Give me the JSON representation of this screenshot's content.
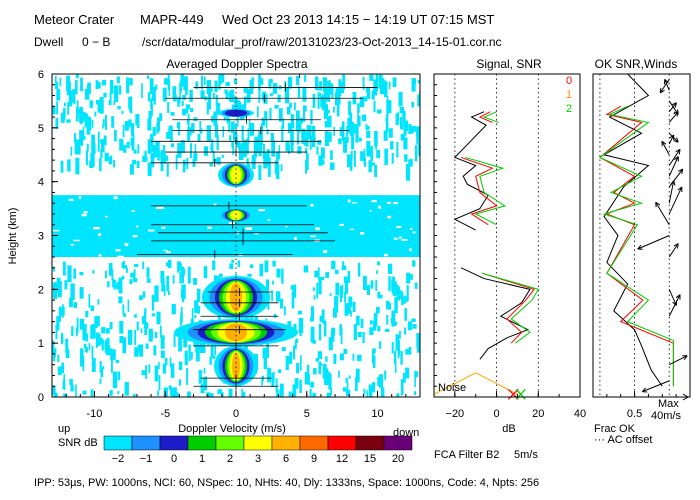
{
  "header": {
    "site": "Meteor Crater",
    "instrument": "MAPR-449",
    "time": "Wed Oct 23 2013 14:15 − 14:19 UT 07:15 MST",
    "dwell_label": "Dwell",
    "dwell_value": "0 − B",
    "file_path": "/scr/data/modular_prof/raw/20131023/23-Oct-2013_14-15-01.cor.nc"
  },
  "footer": {
    "params": "IPP: 53µs, PW: 1000ns, NCI: 60, NSpec: 10, NHts: 40, Dly: 1333ns, Space: 1000ns, Code: 4, Npts: 256",
    "fca": "FCA Filter B2",
    "fca_speed": "5m/s"
  },
  "colorbar": {
    "title_left": "up",
    "title_label": "SNR dB",
    "ticks": [
      "−2",
      "−1",
      "0",
      "1",
      "2",
      "3",
      "6",
      "9",
      "12",
      "15",
      "20"
    ],
    "colors": [
      "#00e5ff",
      "#1e90ff",
      "#1c1cc8",
      "#00cc00",
      "#66ff00",
      "#ffff00",
      "#ffb000",
      "#ff6a00",
      "#ff0000",
      "#7a0010",
      "#6a0078"
    ]
  },
  "chart_data": [
    {
      "type": "heatmap",
      "title": "Averaged Doppler Spectra",
      "xlabel": "Doppler Velocity (m/s)",
      "ylabel": "Height (km)",
      "xlim": [
        -13,
        13
      ],
      "ylim": [
        0,
        6
      ],
      "xticks": [
        -10,
        -5,
        0,
        5,
        10
      ],
      "yticks": [
        0,
        1,
        2,
        3,
        4,
        5,
        6
      ],
      "right_label": "down",
      "noise_layers_km": [
        [
          0.05,
          2.55
        ],
        [
          2.6,
          3.75
        ],
        [
          4.3,
          6.0
        ]
      ],
      "peak_velocity_ms": 0,
      "signal_layers": [
        {
          "h": [
            0.2,
            0.95
          ],
          "snr_db_max": 6
        },
        {
          "h": [
            0.95,
            1.45
          ],
          "snr_db_max": 6
        },
        {
          "h": [
            1.45,
            2.25
          ],
          "snr_db_max": 6
        },
        {
          "h": [
            3.25,
            3.5
          ],
          "snr_db_max": 3
        },
        {
          "h": [
            3.9,
            4.35
          ],
          "snr_db_max": 3
        },
        {
          "h": [
            5.2,
            5.35
          ],
          "snr_db_max": 0
        }
      ],
      "spectral_width_bars": [
        {
          "h": 0.2,
          "lo": -3,
          "hi": 3
        },
        {
          "h": 0.35,
          "lo": -2.5,
          "hi": 2.5
        },
        {
          "h": 0.95,
          "lo": -3,
          "hi": 3
        },
        {
          "h": 1.25,
          "lo": -3,
          "hi": 3.5
        },
        {
          "h": 1.5,
          "lo": -2.5,
          "hi": 3
        },
        {
          "h": 1.75,
          "lo": -2.5,
          "hi": 3
        },
        {
          "h": 1.95,
          "lo": -2,
          "hi": 2.5
        },
        {
          "h": 2.65,
          "lo": -7,
          "hi": 4
        },
        {
          "h": 2.9,
          "lo": -6,
          "hi": 7
        },
        {
          "h": 3.05,
          "lo": -5.5,
          "hi": 6.5
        },
        {
          "h": 3.2,
          "lo": -6,
          "hi": 5.5
        },
        {
          "h": 3.55,
          "lo": -6,
          "hi": 5
        },
        {
          "h": 4.35,
          "lo": -6,
          "hi": 3
        },
        {
          "h": 4.55,
          "lo": -5,
          "hi": 5
        },
        {
          "h": 4.75,
          "lo": -6,
          "hi": 6
        },
        {
          "h": 4.95,
          "lo": -4.5,
          "hi": 8
        },
        {
          "h": 5.15,
          "lo": -4.5,
          "hi": 6
        },
        {
          "h": 5.55,
          "lo": -5,
          "hi": 9
        },
        {
          "h": 5.75,
          "lo": -3,
          "hi": 10
        },
        {
          "h": 6.0,
          "lo": -3,
          "hi": 12
        }
      ]
    },
    {
      "type": "line",
      "title": "Signal, SNR",
      "xlabel": "dB",
      "xlim": [
        -30,
        40
      ],
      "xticks": [
        -20,
        0,
        20,
        40
      ],
      "noise_label": "Noise",
      "dashed_gridlines_db": [
        -20,
        0,
        20
      ],
      "series": [
        {
          "name": "signal",
          "color": "#000000",
          "points": [
            [
              -8,
              0.7
            ],
            [
              -4,
              0.9
            ],
            [
              5,
              1.1
            ],
            [
              15,
              1.25
            ],
            [
              2,
              1.5
            ],
            [
              12,
              1.75
            ],
            [
              16,
              2.0
            ],
            [
              -6,
              2.2
            ],
            [
              -17,
              2.4
            ],
            [
              -10,
              3.1
            ],
            [
              -20,
              3.3
            ],
            [
              -8,
              3.5
            ],
            [
              -4,
              3.75
            ],
            [
              -14,
              3.95
            ],
            [
              -16,
              4.1
            ],
            [
              -10,
              4.3
            ],
            [
              -20,
              4.45
            ],
            [
              -5,
              5.05
            ],
            [
              -12,
              5.2
            ],
            [
              -6,
              5.3
            ]
          ]
        },
        {
          "name": "snr",
          "color": "#ff0000",
          "points": [
            [
              7,
              1.0
            ],
            [
              12,
              1.2
            ],
            [
              5,
              1.45
            ],
            [
              14,
              1.8
            ],
            [
              18,
              2.0
            ],
            [
              -7,
              2.3
            ],
            [
              -4,
              3.2
            ],
            [
              -12,
              3.4
            ],
            [
              0,
              3.55
            ],
            [
              -8,
              3.8
            ],
            [
              -10,
              4.1
            ],
            [
              -2,
              4.25
            ],
            [
              -17,
              4.45
            ],
            [
              -2,
              5.1
            ],
            [
              -8,
              5.2
            ],
            [
              -3,
              5.3
            ]
          ]
        },
        {
          "name": "snr_ok",
          "color": "#00cc00",
          "points": [
            [
              9,
              1.0
            ],
            [
              16,
              1.2
            ],
            [
              7,
              1.45
            ],
            [
              17,
              1.8
            ],
            [
              20,
              2.0
            ],
            [
              -7,
              2.3
            ],
            [
              0,
              3.2
            ],
            [
              -10,
              3.4
            ],
            [
              4,
              3.55
            ],
            [
              -6,
              3.8
            ],
            [
              -8,
              4.1
            ],
            [
              3,
              4.25
            ],
            [
              -15,
              4.45
            ],
            [
              1,
              5.1
            ],
            [
              -6,
              5.2
            ],
            [
              0,
              5.3
            ]
          ]
        }
      ],
      "noise_points": [
        [
          -30,
          0.05
        ],
        [
          -10,
          0.45
        ],
        [
          10,
          0.05
        ]
      ]
    },
    {
      "type": "line",
      "title": "OK SNR,Winds",
      "xlabel": "Frac OK",
      "xlim": [
        0.2,
        0.9
      ],
      "xticks": [
        0.5
      ],
      "xtick_labels": [
        "0.5"
      ],
      "gridline_frac": [
        0.25,
        0.5,
        0.75
      ],
      "threshold_labels": [
        "0",
        "1",
        "2"
      ],
      "threshold_colors": [
        "#ff0000",
        "#ff8800",
        "#00cc00"
      ],
      "ac_offset_label": "··· AC offset",
      "max_label": "Max",
      "max_speed": "40m/s",
      "series": [
        {
          "name": "frac_ok_black",
          "color": "#000000",
          "points": [
            [
              0.7,
              0.2
            ],
            [
              0.62,
              0.5
            ],
            [
              0.55,
              0.95
            ],
            [
              0.5,
              1.25
            ],
            [
              0.35,
              1.6
            ],
            [
              0.45,
              2.1
            ],
            [
              0.3,
              2.5
            ],
            [
              0.38,
              3.0
            ],
            [
              0.28,
              3.35
            ],
            [
              0.42,
              3.9
            ],
            [
              0.6,
              4.3
            ],
            [
              0.28,
              4.5
            ],
            [
              0.55,
              4.9
            ],
            [
              0.32,
              5.2
            ],
            [
              0.6,
              5.6
            ],
            [
              0.45,
              6.0
            ]
          ]
        },
        {
          "name": "frac_ok_red",
          "color": "#ff0000",
          "points": [
            [
              0.78,
              0.2
            ],
            [
              0.78,
              1.0
            ],
            [
              0.4,
              1.4
            ],
            [
              0.56,
              1.8
            ],
            [
              0.3,
              2.3
            ],
            [
              0.5,
              3.2
            ],
            [
              0.3,
              3.4
            ],
            [
              0.5,
              3.6
            ],
            [
              0.35,
              3.8
            ],
            [
              0.5,
              4.1
            ],
            [
              0.25,
              4.45
            ],
            [
              0.55,
              5.1
            ],
            [
              0.3,
              5.25
            ],
            [
              0.4,
              5.4
            ]
          ]
        },
        {
          "name": "frac_ok_green",
          "color": "#00cc00",
          "points": [
            [
              0.78,
              0.2
            ],
            [
              0.78,
              1.05
            ],
            [
              0.45,
              1.4
            ],
            [
              0.6,
              1.8
            ],
            [
              0.3,
              2.3
            ],
            [
              0.52,
              3.2
            ],
            [
              0.28,
              3.4
            ],
            [
              0.55,
              3.6
            ],
            [
              0.33,
              3.8
            ],
            [
              0.55,
              4.1
            ],
            [
              0.25,
              4.45
            ],
            [
              0.6,
              5.1
            ],
            [
              0.32,
              5.25
            ],
            [
              0.45,
              5.4
            ]
          ]
        }
      ],
      "wind_vectors": [
        {
          "h": 0.3,
          "u": -30,
          "v": -12
        },
        {
          "h": 0.6,
          "u": 20,
          "v": 10
        },
        {
          "h": 1.5,
          "u": 12,
          "v": 24
        },
        {
          "h": 2.0,
          "u": 8,
          "v": -18
        },
        {
          "h": 2.6,
          "u": 10,
          "v": 15
        },
        {
          "h": 3.0,
          "u": -35,
          "v": -15
        },
        {
          "h": 3.2,
          "u": -15,
          "v": 25
        },
        {
          "h": 3.4,
          "u": 14,
          "v": 30
        },
        {
          "h": 3.6,
          "u": 5,
          "v": 25
        },
        {
          "h": 3.9,
          "u": 15,
          "v": 20
        },
        {
          "h": 4.1,
          "u": 10,
          "v": 22
        },
        {
          "h": 4.3,
          "u": 12,
          "v": 18
        },
        {
          "h": 4.5,
          "u": -8,
          "v": 15
        },
        {
          "h": 4.7,
          "u": 5,
          "v": 10
        },
        {
          "h": 4.9,
          "u": 10,
          "v": -10
        },
        {
          "h": 5.1,
          "u": 10,
          "v": 12
        },
        {
          "h": 5.3,
          "u": 8,
          "v": 10
        },
        {
          "h": 5.5,
          "u": 10,
          "v": -15
        },
        {
          "h": 5.7,
          "u": -5,
          "v": 12
        },
        {
          "h": 5.9,
          "u": -10,
          "v": -15
        }
      ]
    }
  ]
}
